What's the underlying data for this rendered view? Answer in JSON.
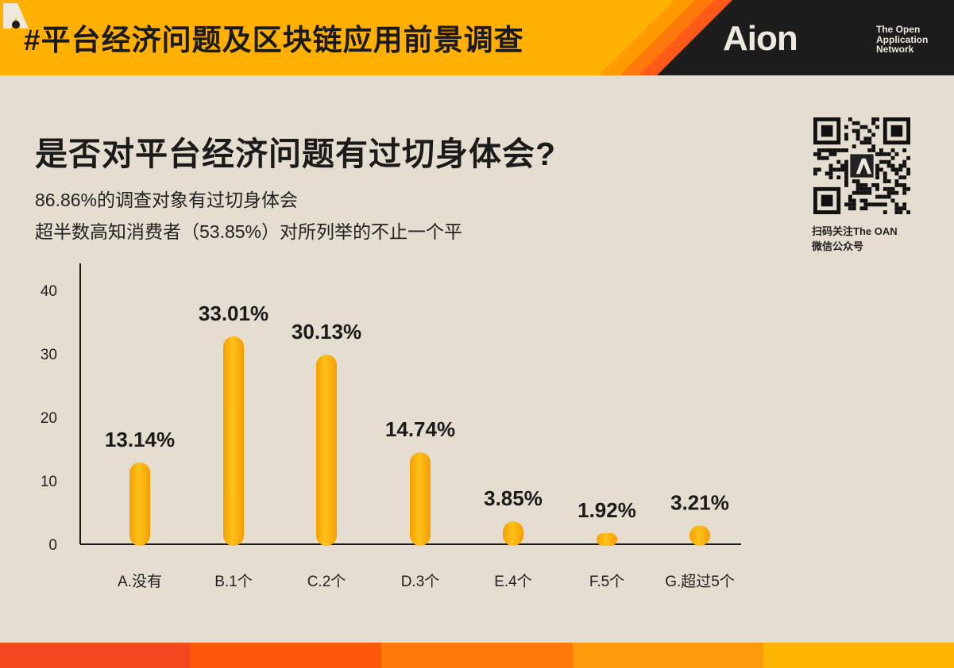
{
  "header": {
    "title": "#平台经济问题及区块链应用前景调查",
    "brand": "Aion",
    "oan_lines": [
      "The Open",
      "Application",
      "Network"
    ],
    "colors": {
      "band": "#ffb000",
      "dark": "#1c1c1c",
      "stripe1": "#ff8a00",
      "stripe2": "#ff5a1a"
    }
  },
  "question": "是否对平台经济问题有过切身体会?",
  "subtitle": {
    "line1": "86.86%的调查对象有过切身体会",
    "line2": "超半数高知消费者（53.85%）对所列举的不止一个平"
  },
  "qr": {
    "icon": "qr-code-icon",
    "caption_line1": "扫码关注The OAN",
    "caption_line2": "微信公众号"
  },
  "footer": {
    "colors": [
      "#f24a1e",
      "#ff5a0a",
      "#ff7a0a",
      "#ff9a0a",
      "#ffb400"
    ]
  },
  "chart_data": {
    "type": "bar",
    "categories": [
      "A.没有",
      "B.1个",
      "C.2个",
      "D.3个",
      "E.4个",
      "F.5个",
      "G.超过5个"
    ],
    "values": [
      13.14,
      33.01,
      30.13,
      14.74,
      3.85,
      1.92,
      3.21
    ],
    "data_labels": [
      "13.14%",
      "33.01%",
      "30.13%",
      "14.74%",
      "3.85%",
      "1.92%",
      "3.21%"
    ],
    "yticks": [
      0,
      10,
      20,
      30,
      40
    ],
    "ylim": [
      0,
      40
    ],
    "grid": false,
    "bar_color": "#ffb400",
    "bar_shade": "#f59c00"
  }
}
